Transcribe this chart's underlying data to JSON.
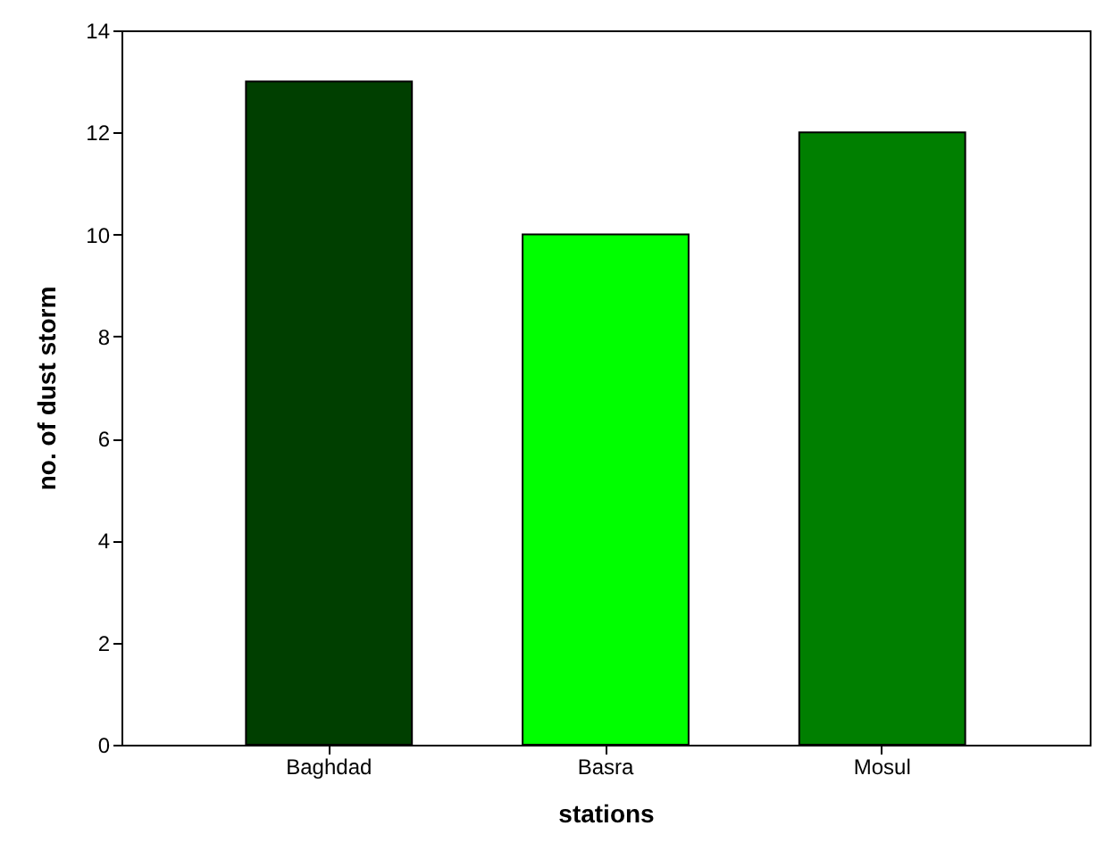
{
  "chart_data": {
    "type": "bar",
    "xlabel": "stations",
    "ylabel": "no. of dust storm",
    "categories": [
      "Baghdad",
      "Basra",
      "Mosul"
    ],
    "values": [
      13,
      10,
      12
    ],
    "colors": [
      "#003f00",
      "#00ff00",
      "#007f00"
    ],
    "ylim": [
      0,
      14
    ],
    "yticks": [
      0,
      2,
      4,
      6,
      8,
      10,
      12,
      14
    ]
  }
}
